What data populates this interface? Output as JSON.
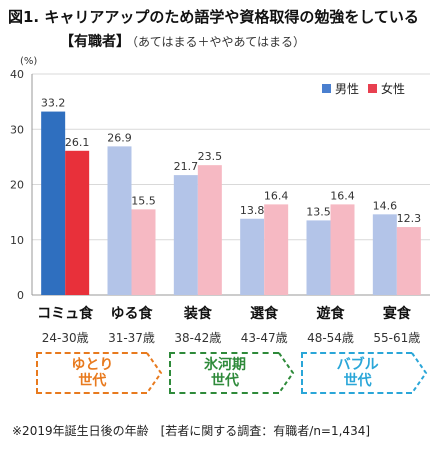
{
  "title": "図1. キャリアアップのため語学や資格取得の勉強をしている",
  "subtitle_main": "【有職者】",
  "subtitle_note": "（あてはまる＋ややあてはまる）",
  "chart_data": {
    "type": "bar",
    "y_unit": "(%)",
    "ylim": [
      0,
      40
    ],
    "yticks": [
      0,
      10,
      20,
      30,
      40
    ],
    "grid": true,
    "legend_position": "top-right",
    "categories": [
      "コミュ食",
      "ゆる食",
      "装食",
      "選食",
      "遊食",
      "宴食"
    ],
    "age_ranges": [
      "24-30歳",
      "31-37歳",
      "38-42歳",
      "43-47歳",
      "48-54歳",
      "55-61歳"
    ],
    "series": [
      {
        "name": "男性",
        "values": [
          33.2,
          26.9,
          21.7,
          13.8,
          13.5,
          14.6
        ]
      },
      {
        "name": "女性",
        "values": [
          26.1,
          15.5,
          23.5,
          16.4,
          16.4,
          12.3
        ]
      }
    ],
    "value_labels_male": [
      "33.2",
      "26.9",
      "21.7",
      "13.8",
      "13.5",
      "14.6"
    ],
    "value_labels_female": [
      "26.1",
      "15.5",
      "23.5",
      "16.4",
      "16.4",
      "12.3"
    ],
    "colors": {
      "male_highlight": "#2f6fbf",
      "female_highlight": "#e8303a",
      "male": "#b3c4e8",
      "female": "#f6b9c3",
      "legend_male": "#4a7fcf",
      "legend_female": "#e84050"
    }
  },
  "generations": [
    {
      "label": "ゆとり\n世代",
      "color": "#e87a1e",
      "from": 0,
      "to": 1
    },
    {
      "label": "氷河期\n世代",
      "color": "#2e8a3a",
      "from": 2,
      "to": 3
    },
    {
      "label": "バブル\n世代",
      "color": "#2aa6d8",
      "from": 4,
      "to": 5
    }
  ],
  "footnote": "※2019年誕生日後の年齢　[若者に関する調査：有職者/n=1,434]"
}
